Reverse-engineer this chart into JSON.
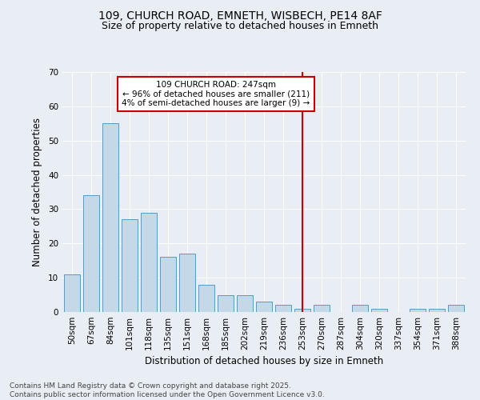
{
  "title": "109, CHURCH ROAD, EMNETH, WISBECH, PE14 8AF",
  "subtitle": "Size of property relative to detached houses in Emneth",
  "xlabel": "Distribution of detached houses by size in Emneth",
  "ylabel": "Number of detached properties",
  "categories": [
    "50sqm",
    "67sqm",
    "84sqm",
    "101sqm",
    "118sqm",
    "135sqm",
    "151sqm",
    "168sqm",
    "185sqm",
    "202sqm",
    "219sqm",
    "236sqm",
    "253sqm",
    "270sqm",
    "287sqm",
    "304sqm",
    "320sqm",
    "337sqm",
    "354sqm",
    "371sqm",
    "388sqm"
  ],
  "values": [
    11,
    34,
    55,
    27,
    29,
    16,
    17,
    8,
    5,
    5,
    3,
    2,
    1,
    2,
    0,
    2,
    1,
    0,
    1,
    1,
    2
  ],
  "bar_color": "#c5d8e8",
  "bar_edge_color": "#5a9abd",
  "vline_index": 12,
  "annotation_line1": "109 CHURCH ROAD: 247sqm",
  "annotation_line2": "← 96% of detached houses are smaller (211)",
  "annotation_line3": "4% of semi-detached houses are larger (9) →",
  "ylim": [
    0,
    70
  ],
  "yticks": [
    0,
    10,
    20,
    30,
    40,
    50,
    60,
    70
  ],
  "background_color": "#e8eef4",
  "plot_background": "#e8eef4",
  "grid_color": "#ffffff",
  "vline_color": "#cc0000",
  "annotation_box_facecolor": "#ffffff",
  "annotation_box_edgecolor": "#cc0000",
  "footer_line1": "Contains HM Land Registry data © Crown copyright and database right 2025.",
  "footer_line2": "Contains public sector information licensed under the Open Government Licence v3.0.",
  "title_fontsize": 10,
  "subtitle_fontsize": 9,
  "axis_label_fontsize": 8.5,
  "tick_fontsize": 7.5,
  "annotation_fontsize": 7.5,
  "footer_fontsize": 6.5
}
